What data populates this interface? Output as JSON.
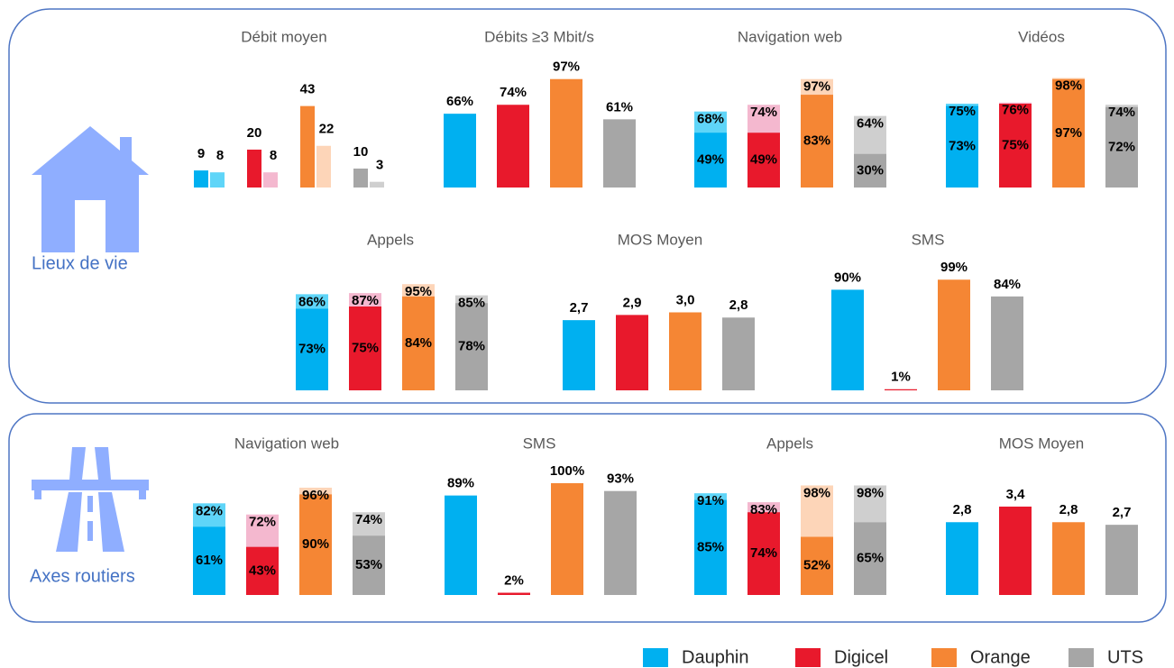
{
  "sections": [
    {
      "label": "Lieux de vie"
    },
    {
      "label": "Axes routiers"
    }
  ],
  "legend": [
    {
      "name": "Dauphin",
      "color": "#00b0f0",
      "light": "#5fd5f8"
    },
    {
      "name": "Digicel",
      "color": "#e8192c",
      "light": "#f4b8cf"
    },
    {
      "name": "Orange",
      "color": "#f58634",
      "light": "#fdd5b8"
    },
    {
      "name": "UTS",
      "color": "#a6a6a6",
      "light": "#cfcfcf"
    }
  ],
  "chart_data": [
    {
      "type": "grouped",
      "title": "Débit moyen",
      "ylim": [
        0,
        59
      ],
      "series": [
        {
          "values": [
            9,
            20,
            43,
            10
          ]
        },
        {
          "values": [
            8,
            8,
            22,
            3
          ]
        }
      ]
    },
    {
      "type": "bar",
      "title": "Débits  ≥3 Mbit/s",
      "ylim": [
        0,
        100
      ],
      "values": [
        66,
        74,
        97,
        61
      ],
      "value_labels": [
        "66%",
        "74%",
        "97%",
        "61%"
      ]
    },
    {
      "type": "overlap",
      "title": "Navigation web",
      "ylim": [
        0,
        100
      ],
      "series": [
        {
          "values": [
            49,
            49,
            83,
            30
          ],
          "value_labels": [
            "49%",
            "49%",
            "83%",
            "30%"
          ]
        },
        {
          "values": [
            68,
            74,
            97,
            64
          ],
          "value_labels": [
            "68%",
            "74%",
            "97%",
            "64%"
          ]
        }
      ]
    },
    {
      "type": "overlap",
      "title": "Vidéos",
      "ylim": [
        0,
        100
      ],
      "series": [
        {
          "values": [
            73,
            75,
            97,
            72
          ],
          "value_labels": [
            "73%",
            "75%",
            "97%",
            "72%"
          ]
        },
        {
          "values": [
            75,
            76,
            98,
            74
          ],
          "value_labels": [
            "75%",
            "76%",
            "98%",
            "74%"
          ]
        }
      ]
    },
    {
      "type": "overlap",
      "title": "Appels",
      "ylim": [
        0,
        100
      ],
      "series": [
        {
          "values": [
            73,
            75,
            84,
            78
          ],
          "value_labels": [
            "73%",
            "75%",
            "84%",
            "78%"
          ]
        },
        {
          "values": [
            86,
            87,
            95,
            85
          ],
          "value_labels": [
            "86%",
            "87%",
            "95%",
            "85%"
          ]
        }
      ]
    },
    {
      "type": "bar",
      "title": "MOS Moyen",
      "ylim": [
        0,
        4.3
      ],
      "values": [
        2.7,
        2.9,
        3.0,
        2.8
      ],
      "value_labels": [
        "2,7",
        "2,9",
        "3,0",
        "2,8"
      ]
    },
    {
      "type": "bar",
      "title": "SMS",
      "ylim": [
        0,
        100
      ],
      "values": [
        90,
        1,
        99,
        84
      ],
      "value_labels": [
        "90%",
        "1%",
        "99%",
        "84%"
      ]
    },
    {
      "type": "overlap",
      "title": "Navigation web",
      "ylim": [
        0,
        100
      ],
      "series": [
        {
          "values": [
            61,
            43,
            90,
            53
          ],
          "value_labels": [
            "61%",
            "43%",
            "90%",
            "53%"
          ]
        },
        {
          "values": [
            82,
            72,
            96,
            74
          ],
          "value_labels": [
            "82%",
            "72%",
            "96%",
            "74%"
          ]
        }
      ]
    },
    {
      "type": "bar",
      "title": "SMS",
      "ylim": [
        0,
        100
      ],
      "values": [
        89,
        2,
        100,
        93
      ],
      "value_labels": [
        "89%",
        "2%",
        "100%",
        "93%"
      ]
    },
    {
      "type": "overlap",
      "title": "Appels",
      "ylim": [
        0,
        100
      ],
      "series": [
        {
          "values": [
            85,
            74,
            52,
            65
          ],
          "value_labels": [
            "85%",
            "74%",
            "52%",
            "65%"
          ]
        },
        {
          "values": [
            91,
            83,
            98,
            98
          ],
          "value_labels": [
            "91%",
            "83%",
            "98%",
            "98%"
          ]
        }
      ]
    },
    {
      "type": "bar",
      "title": "MOS Moyen",
      "ylim": [
        0,
        4.3
      ],
      "values": [
        2.8,
        3.4,
        2.8,
        2.7
      ],
      "value_labels": [
        "2,8",
        "3,4",
        "2,8",
        "2,7"
      ]
    }
  ]
}
